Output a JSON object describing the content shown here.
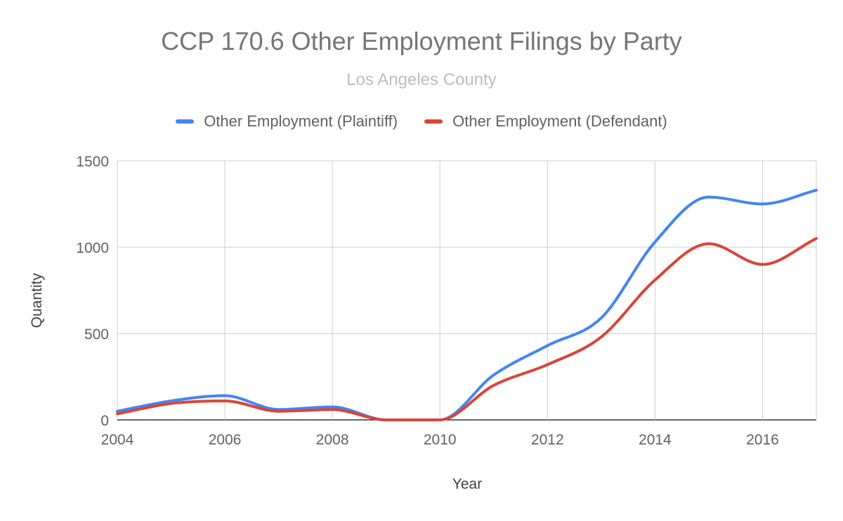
{
  "chart_data": {
    "type": "line",
    "title": "CCP 170.6 Other Employment Filings by Party",
    "subtitle": "Los Angeles County",
    "xlabel": "Year",
    "ylabel": "Quantity",
    "x": [
      2004,
      2005,
      2006,
      2007,
      2008,
      2009,
      2010,
      2011,
      2012,
      2013,
      2014,
      2015,
      2016,
      2017
    ],
    "x_ticks": [
      "2004",
      "2006",
      "2008",
      "2010",
      "2012",
      "2014",
      "2016"
    ],
    "y_ticks": [
      "0",
      "500",
      "1000",
      "1500"
    ],
    "xlim": [
      2004,
      2017
    ],
    "ylim": [
      0,
      1500
    ],
    "grid": true,
    "legend_position": "top",
    "series": [
      {
        "name": "Other Employment (Plaintiff)",
        "color": "#4285f4",
        "values": [
          50,
          110,
          140,
          60,
          75,
          0,
          0,
          260,
          430,
          590,
          1030,
          1290,
          1250,
          1330
        ]
      },
      {
        "name": "Other Employment (Defendant)",
        "color": "#db4437",
        "values": [
          35,
          95,
          110,
          50,
          60,
          0,
          0,
          200,
          320,
          480,
          810,
          1020,
          900,
          1050
        ]
      }
    ]
  }
}
